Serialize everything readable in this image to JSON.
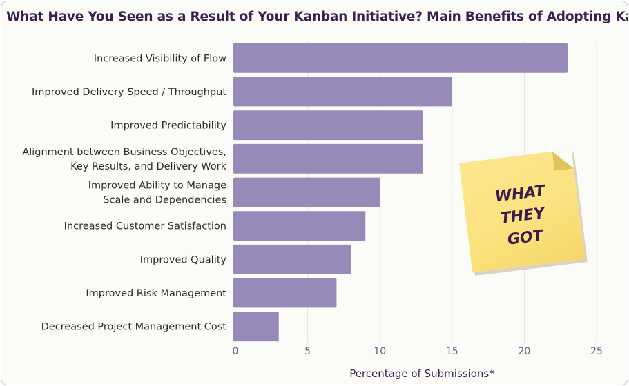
{
  "title": "What Have You Seen as a Result of Your Kanban Initiative? Main Benefits of Adopting Kanban",
  "sticky_note": {
    "text": "WHAT\nTHEY\nGOT"
  },
  "colors": {
    "bar": "#9789b8",
    "grid": "#e4e4e4",
    "title": "#3b1f52",
    "sticky": "#fce380"
  },
  "chart_data": {
    "type": "bar",
    "orientation": "horizontal",
    "categories": [
      [
        "Increased Visibility of Flow"
      ],
      [
        "Improved Delivery Speed / Throughput"
      ],
      [
        "Improved Predictability"
      ],
      [
        "Alignment between Business Objectives,",
        "Key Results, and Delivery Work"
      ],
      [
        "Improved Ability to Manage",
        "Scale and Dependencies"
      ],
      [
        "Increased Customer Satisfaction"
      ],
      [
        "Improved Quality"
      ],
      [
        "Improved Risk Management"
      ],
      [
        "Decreased Project Management Cost"
      ]
    ],
    "values": [
      23,
      15,
      13,
      13,
      10,
      9,
      8,
      7,
      3
    ],
    "xlabel": "Percentage of Submissions*",
    "ylabel": "",
    "xlim": [
      0,
      25
    ],
    "xticks": [
      0,
      5,
      10,
      15,
      20,
      25
    ],
    "grid": "vertical",
    "legend": "none"
  }
}
